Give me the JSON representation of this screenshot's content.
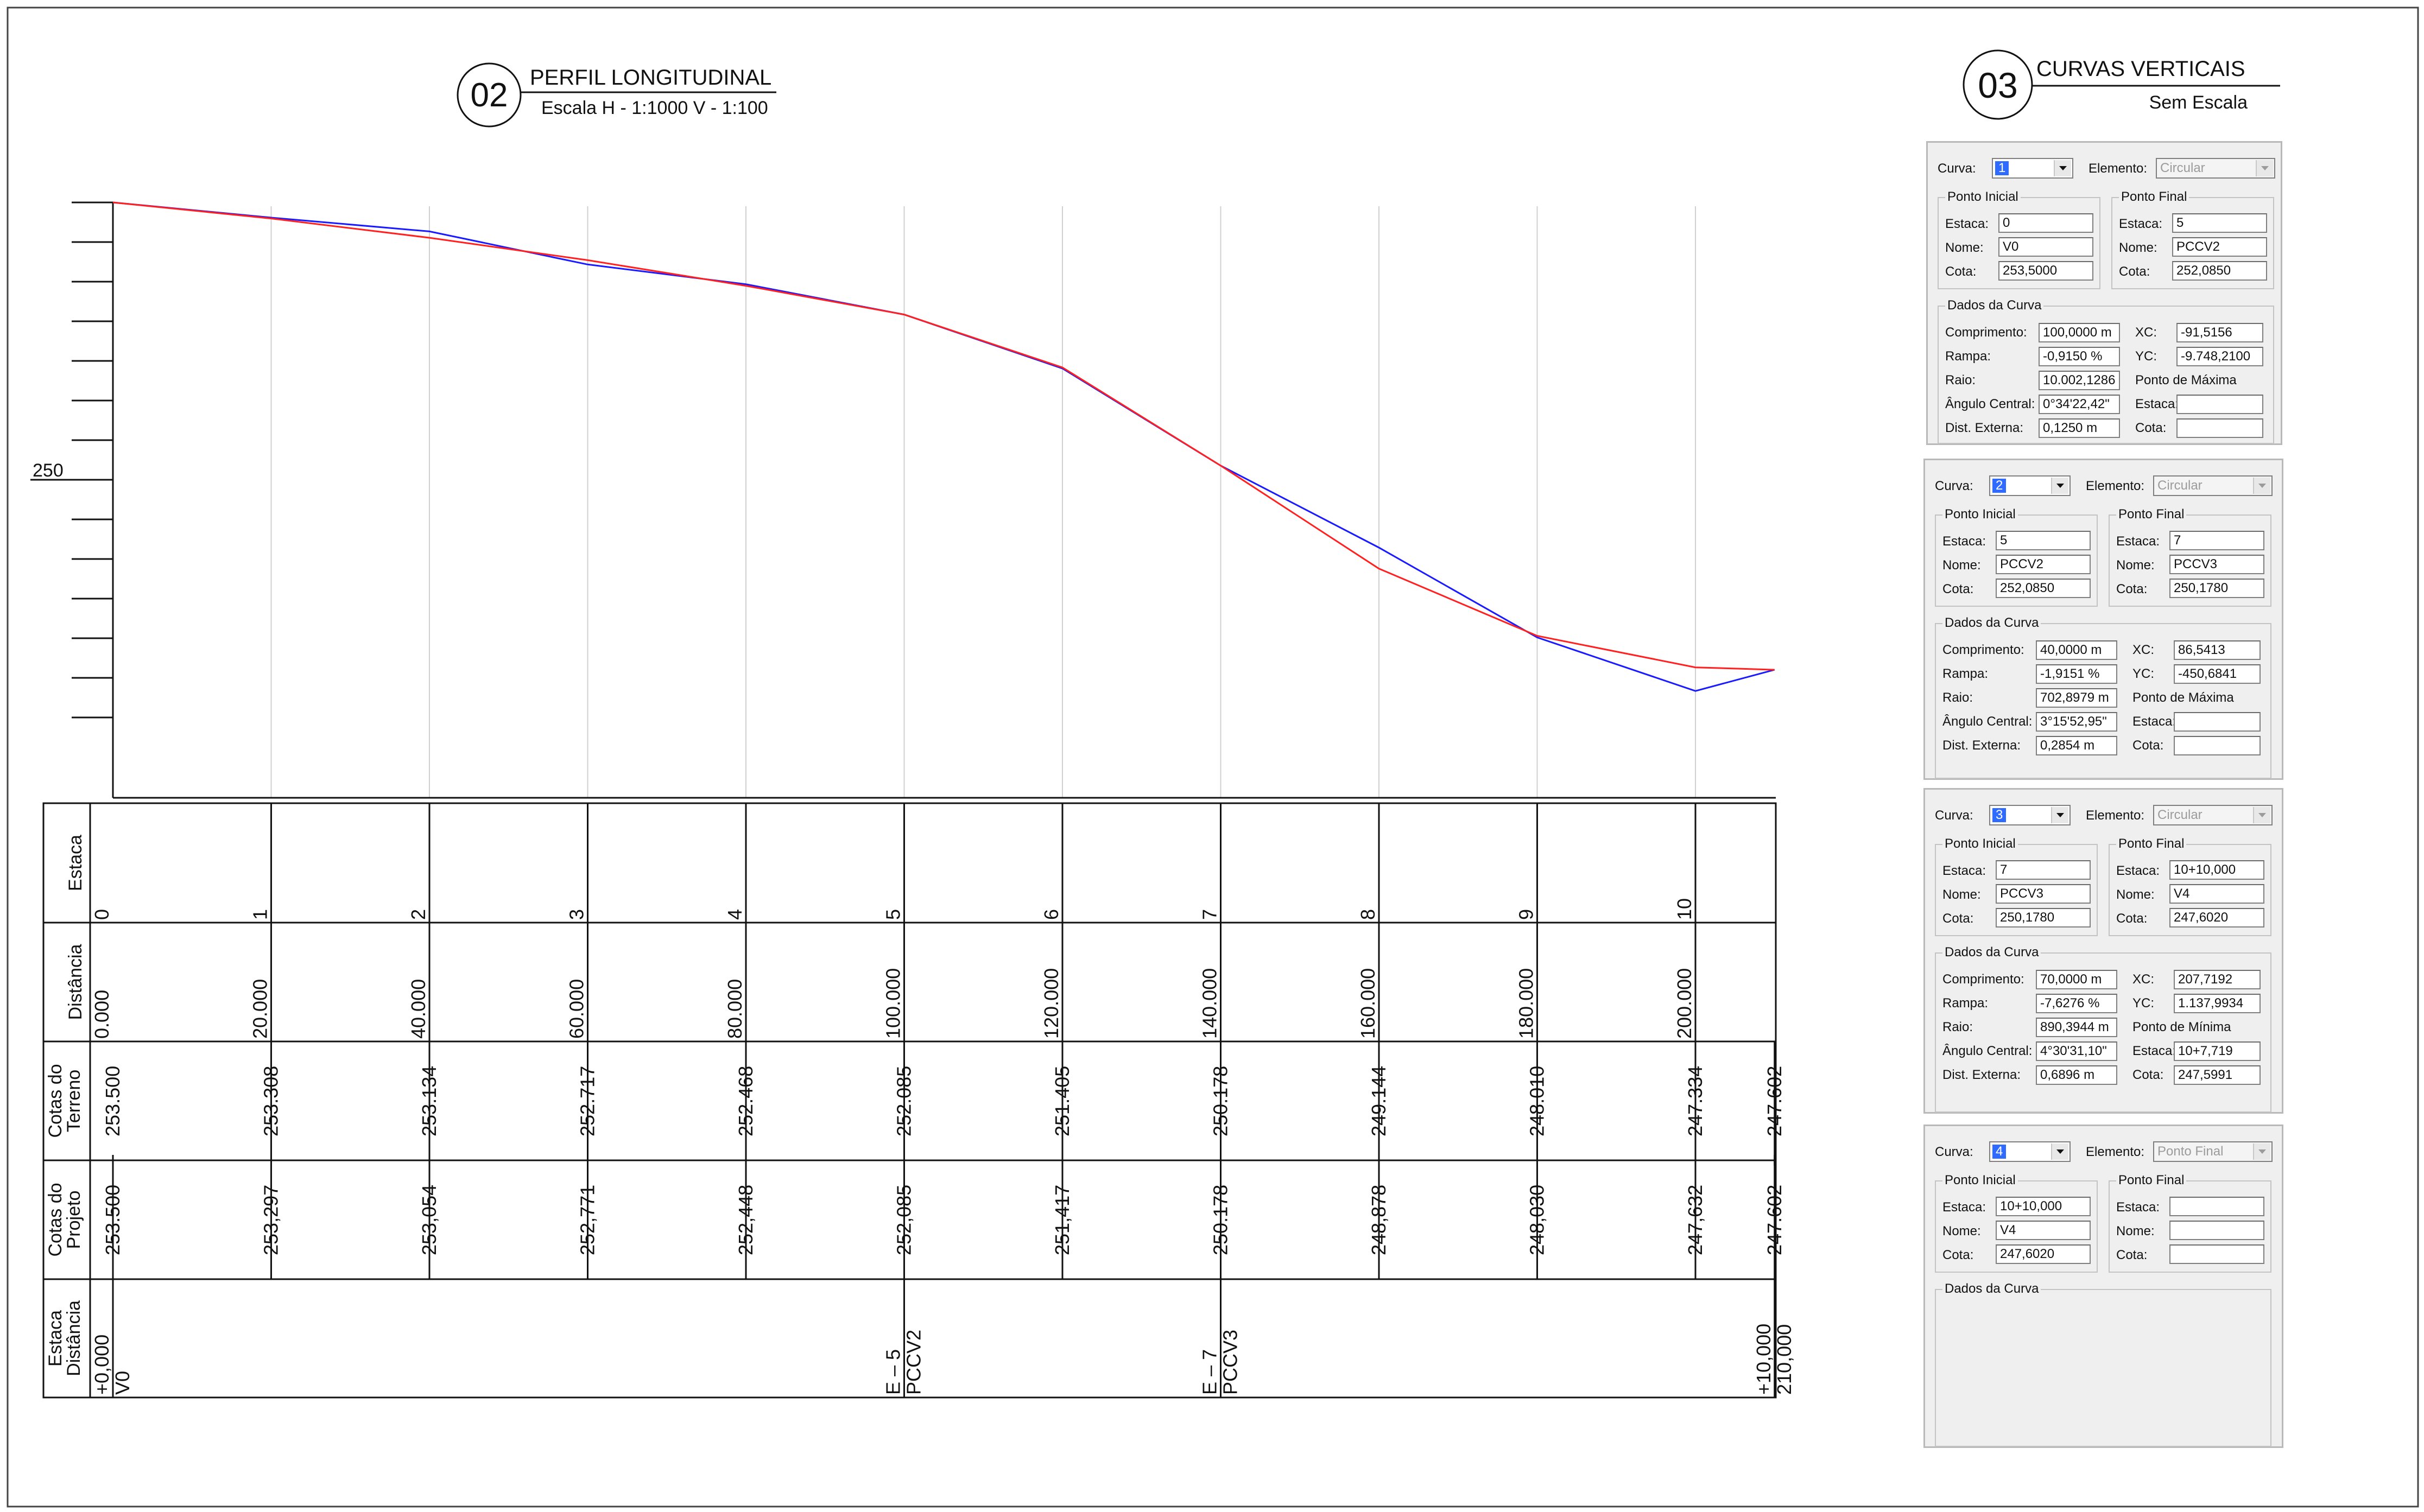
{
  "title_02": {
    "number": "02",
    "title": "PERFIL LONGITUDINAL",
    "scale": "Escala H - 1:1000 V - 1:100"
  },
  "title_03": {
    "number": "03",
    "title": "CURVAS VERTICAIS",
    "scale": "Sem Escala"
  },
  "profile": {
    "y_label": "250",
    "colors": {
      "terrain": "#1a1aff",
      "project": "#ff2020"
    }
  },
  "table": {
    "row_labels": {
      "estaca": [
        "Estaca"
      ],
      "distancia": [
        "Distância"
      ],
      "cotas_terreno": [
        "Cotas do",
        "Terreno"
      ],
      "cotas_projeto": [
        "Cotas do",
        "Projeto"
      ],
      "estaca_distancia": [
        "Estaca",
        "Distância"
      ]
    },
    "estacas": [
      "0",
      "1",
      "2",
      "3",
      "4",
      "5",
      "6",
      "7",
      "8",
      "9",
      "10"
    ],
    "distancias": [
      "0.000",
      "20.000",
      "40.000",
      "60.000",
      "80.000",
      "100.000",
      "120.000",
      "140.000",
      "160.000",
      "180.000",
      "200.000"
    ],
    "cotas_terreno": [
      "253.500",
      "253.308",
      "253.134",
      "252.717",
      "252.468",
      "252.085",
      "251.405",
      "250.178",
      "249.144",
      "248.010",
      "247.334",
      "247.602"
    ],
    "cotas_projeto": [
      "253.500",
      "253,297",
      "253,054",
      "252,771",
      "252,448",
      "252,085",
      "251,417",
      "250.178",
      "248,878",
      "248,030",
      "247,632",
      "247.602"
    ],
    "pontos": [
      {
        "line1": "+0,000",
        "line2": "V0"
      },
      {
        "line1": "E – 5",
        "line2": "PCCV2"
      },
      {
        "line1": "E – 7",
        "line2": "PCCV3"
      },
      {
        "line1": "+10,000",
        "line2": "210,000"
      }
    ]
  },
  "chart_data": {
    "type": "line",
    "title": "PERFIL LONGITUDINAL",
    "xlabel": "Distância",
    "ylabel": "",
    "x": [
      0,
      20,
      40,
      60,
      80,
      100,
      120,
      140,
      160,
      180,
      200,
      210
    ],
    "series": [
      {
        "name": "Cotas do Terreno",
        "values": [
          253.5,
          253.308,
          253.134,
          252.717,
          252.468,
          252.085,
          251.405,
          250.178,
          249.144,
          248.01,
          247.334,
          247.602
        ]
      },
      {
        "name": "Cotas do Projeto",
        "values": [
          253.5,
          253.297,
          253.054,
          252.771,
          252.448,
          252.085,
          251.417,
          250.178,
          248.878,
          248.03,
          247.632,
          247.602
        ]
      }
    ],
    "ylim": [
      246.5,
      254
    ]
  },
  "curves": [
    {
      "curva_label": "Curva:",
      "curva": "1",
      "elemento_label": "Elemento:",
      "elemento": "Circular",
      "pi_title": "Ponto Inicial",
      "pf_title": "Ponto Final",
      "estaca_label": "Estaca:",
      "nome_label": "Nome:",
      "cota_label": "Cota:",
      "pi": {
        "estaca": "0",
        "nome": "V0",
        "cota": "253,5000"
      },
      "pf": {
        "estaca": "5",
        "nome": "PCCV2",
        "cota": "252,0850"
      },
      "dados_title": "Dados da Curva",
      "comprimento_label": "Comprimento:",
      "comprimento": "100,0000 m",
      "rampa_label": "Rampa:",
      "rampa": "-0,9150 %",
      "raio_label": "Raio:",
      "raio": "10.002,1286 r",
      "angulo_label": "Ângulo Central:",
      "angulo": "0°34'22,42\"",
      "dist_label": "Dist. Externa:",
      "dist": "0,1250 m",
      "xc_label": "XC:",
      "xc": "-91,5156",
      "yc_label": "YC:",
      "yc": "-9.748,2100",
      "ponto_label": "Ponto de Máxima",
      "p_estaca_label": "Estaca:",
      "p_estaca": "",
      "p_cota_label": "Cota:",
      "p_cota": ""
    },
    {
      "curva_label": "Curva:",
      "curva": "2",
      "elemento_label": "Elemento:",
      "elemento": "Circular",
      "pi_title": "Ponto Inicial",
      "pf_title": "Ponto Final",
      "estaca_label": "Estaca:",
      "nome_label": "Nome:",
      "cota_label": "Cota:",
      "pi": {
        "estaca": "5",
        "nome": "PCCV2",
        "cota": "252,0850"
      },
      "pf": {
        "estaca": "7",
        "nome": "PCCV3",
        "cota": "250,1780"
      },
      "dados_title": "Dados da Curva",
      "comprimento_label": "Comprimento:",
      "comprimento": "40,0000 m",
      "rampa_label": "Rampa:",
      "rampa": "-1,9151 %",
      "raio_label": "Raio:",
      "raio": "702,8979 m",
      "angulo_label": "Ângulo Central:",
      "angulo": "3°15'52,95\"",
      "dist_label": "Dist. Externa:",
      "dist": "0,2854 m",
      "xc_label": "XC:",
      "xc": "86,5413",
      "yc_label": "YC:",
      "yc": "-450,6841",
      "ponto_label": "Ponto de Máxima",
      "p_estaca_label": "Estaca:",
      "p_estaca": "",
      "p_cota_label": "Cota:",
      "p_cota": ""
    },
    {
      "curva_label": "Curva:",
      "curva": "3",
      "elemento_label": "Elemento:",
      "elemento": "Circular",
      "pi_title": "Ponto Inicial",
      "pf_title": "Ponto Final",
      "estaca_label": "Estaca:",
      "nome_label": "Nome:",
      "cota_label": "Cota:",
      "pi": {
        "estaca": "7",
        "nome": "PCCV3",
        "cota": "250,1780"
      },
      "pf": {
        "estaca": "10+10,000",
        "nome": "V4",
        "cota": "247,6020"
      },
      "dados_title": "Dados da Curva",
      "comprimento_label": "Comprimento:",
      "comprimento": "70,0000 m",
      "rampa_label": "Rampa:",
      "rampa": "-7,6276 %",
      "raio_label": "Raio:",
      "raio": "890,3944 m",
      "angulo_label": "Ângulo Central:",
      "angulo": "4°30'31,10\"",
      "dist_label": "Dist. Externa:",
      "dist": "0,6896 m",
      "xc_label": "XC:",
      "xc": "207,7192",
      "yc_label": "YC:",
      "yc": "1.137,9934",
      "ponto_label": "Ponto de Mínima",
      "p_estaca_label": "Estaca:",
      "p_estaca": "10+7,719",
      "p_cota_label": "Cota:",
      "p_cota": "247,5991"
    },
    {
      "curva_label": "Curva:",
      "curva": "4",
      "elemento_label": "Elemento:",
      "elemento": "Ponto Final",
      "pi_title": "Ponto Inicial",
      "pf_title": "Ponto Final",
      "estaca_label": "Estaca:",
      "nome_label": "Nome:",
      "cota_label": "Cota:",
      "pi": {
        "estaca": "10+10,000",
        "nome": "V4",
        "cota": "247,6020"
      },
      "pf": {
        "estaca": "",
        "nome": "",
        "cota": ""
      },
      "dados_title": "Dados da Curva"
    }
  ]
}
